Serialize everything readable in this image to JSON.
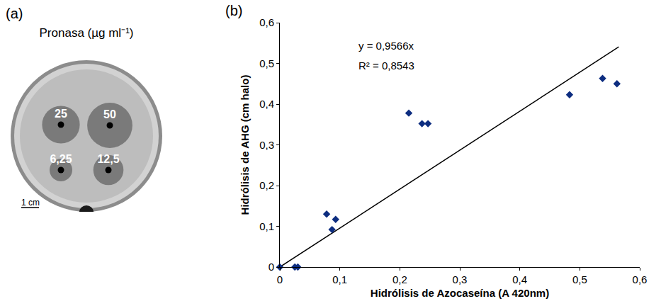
{
  "panel_a": {
    "label": "(a)",
    "title": "Pronasa (µg ml⁻¹)",
    "scale_bar": "1 cm",
    "wells": [
      {
        "label": "25",
        "value": 25
      },
      {
        "label": "50",
        "value": 50
      },
      {
        "label": "6,25",
        "value": 6.25
      },
      {
        "label": "12,5",
        "value": 12.5
      }
    ]
  },
  "chart_data": {
    "type": "scatter",
    "label": "(b)",
    "x_title": "Hidrólisis de Azocaseína (A 420nm)",
    "y_title": "Hidrólisis de AHG (cm halo)",
    "x": [
      0,
      0.025,
      0.03,
      0.078,
      0.087,
      0.093,
      0.215,
      0.237,
      0.247,
      0.483,
      0.538,
      0.562
    ],
    "values": [
      0,
      0,
      0,
      0.13,
      0.092,
      0.117,
      0.378,
      0.352,
      0.352,
      0.423,
      0.463,
      0.45
    ],
    "color": "#0d2d80",
    "marker": "diamond",
    "fit": {
      "slope": 0.9566,
      "x": [
        0,
        0.565
      ],
      "equation": "y = 0,9566x",
      "r2_label": "R² = 0,8543",
      "color": "#000000"
    },
    "xlim": [
      0,
      0.6
    ],
    "xticks": [
      0,
      {
        "value": 0.1,
        "label": "0,1"
      },
      {
        "value": 0.2,
        "label": "0,2"
      },
      {
        "value": 0.3,
        "label": "0,3"
      },
      {
        "value": 0.4,
        "label": "0,4"
      },
      {
        "value": 0.5,
        "label": "0,5"
      },
      {
        "value": 0.6,
        "label": "0,6"
      }
    ],
    "ylim": [
      0,
      0.6
    ],
    "yticks": [
      0,
      {
        "value": 0.1,
        "label": "0,1"
      },
      {
        "value": 0.2,
        "label": "0,2"
      },
      {
        "value": 0.3,
        "label": "0,3"
      },
      {
        "value": 0.4,
        "label": "0,4"
      },
      {
        "value": 0.5,
        "label": "0,5"
      },
      {
        "value": 0.6,
        "label": "0,6"
      }
    ],
    "grid": false
  }
}
